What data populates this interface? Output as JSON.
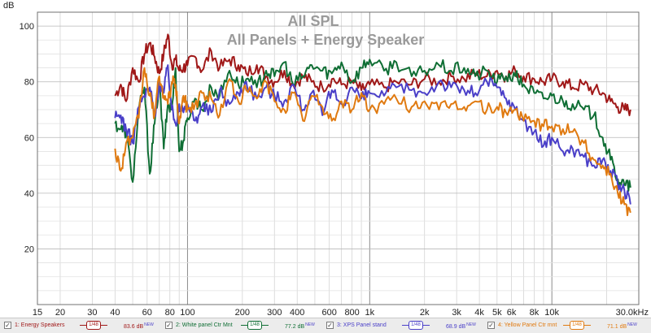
{
  "chart_data": {
    "type": "line",
    "title": "All SPL",
    "subtitle": "All Panels + Energy Speaker",
    "ylabel": "dB",
    "xscale": "log",
    "xlim": [
      15,
      30000
    ],
    "ylim": [
      0,
      105
    ],
    "grid": true,
    "y_ticks": [
      20,
      40,
      60,
      80,
      100
    ],
    "x_ticks": [
      {
        "value": 15,
        "label": "15"
      },
      {
        "value": 20,
        "label": "20"
      },
      {
        "value": 30,
        "label": "30"
      },
      {
        "value": 40,
        "label": "40"
      },
      {
        "value": 60,
        "label": "60"
      },
      {
        "value": 80,
        "label": "80"
      },
      {
        "value": 100,
        "label": "100"
      },
      {
        "value": 200,
        "label": "200"
      },
      {
        "value": 300,
        "label": "300"
      },
      {
        "value": 400,
        "label": "400"
      },
      {
        "value": 600,
        "label": "600"
      },
      {
        "value": 800,
        "label": "800"
      },
      {
        "value": 1000,
        "label": "1k"
      },
      {
        "value": 2000,
        "label": "2k"
      },
      {
        "value": 3000,
        "label": "3k"
      },
      {
        "value": 4000,
        "label": "4k"
      },
      {
        "value": 5000,
        "label": "5k"
      },
      {
        "value": 6000,
        "label": "6k"
      },
      {
        "value": 8000,
        "label": "8k"
      },
      {
        "value": 10000,
        "label": "10k"
      },
      {
        "value": 30000,
        "label": "30.0kHz"
      }
    ],
    "series": [
      {
        "name": "1: Energy Speakers",
        "color": "#a01818",
        "x": [
          40,
          43,
          46,
          50,
          54,
          58,
          62,
          66,
          70,
          74,
          78,
          82,
          86,
          90,
          95,
          100,
          110,
          120,
          135,
          150,
          170,
          190,
          210,
          240,
          270,
          300,
          340,
          380,
          430,
          480,
          550,
          620,
          700,
          800,
          900,
          1000,
          1200,
          1400,
          1700,
          2000,
          2400,
          2800,
          3300,
          3800,
          4400,
          5000,
          5600,
          6300,
          7000,
          8000,
          9000,
          10000,
          11500,
          13000,
          15000,
          17000,
          19000,
          21000,
          23000,
          25000,
          27000
        ],
        "y": [
          75,
          79,
          73,
          85,
          80,
          90,
          94,
          89,
          83,
          90,
          97,
          86,
          88,
          84,
          85,
          86,
          89,
          84,
          91,
          85,
          88,
          86,
          83,
          86,
          82,
          80,
          84,
          79,
          82,
          80,
          78,
          81,
          79,
          80,
          77,
          79,
          78,
          80,
          79,
          81,
          80,
          82,
          81,
          83,
          82,
          84,
          82,
          84,
          82,
          81,
          80,
          81,
          80,
          78,
          79,
          77,
          76,
          73,
          71,
          70,
          70
        ]
      },
      {
        "name": "2: White panel Ctr Mnt",
        "color": "#0f6e34",
        "x": [
          40,
          43,
          46,
          50,
          54,
          58,
          62,
          66,
          70,
          74,
          78,
          82,
          86,
          90,
          95,
          100,
          110,
          120,
          135,
          150,
          170,
          190,
          210,
          240,
          270,
          300,
          340,
          380,
          430,
          480,
          550,
          620,
          700,
          800,
          900,
          1000,
          1200,
          1400,
          1700,
          2000,
          2400,
          2800,
          3300,
          3800,
          4400,
          5000,
          5600,
          6300,
          7000,
          8000,
          9000,
          10000,
          11500,
          13000,
          15000,
          17000,
          19000,
          21000,
          23000,
          25000,
          27000
        ],
        "y": [
          65,
          63,
          62,
          44,
          70,
          78,
          47,
          65,
          80,
          56,
          72,
          70,
          85,
          55,
          59,
          67,
          74,
          70,
          78,
          75,
          84,
          79,
          81,
          78,
          84,
          82,
          87,
          79,
          82,
          86,
          84,
          83,
          87,
          80,
          85,
          88,
          84,
          87,
          82,
          84,
          86,
          84,
          85,
          82,
          84,
          80,
          82,
          82,
          79,
          76,
          74,
          75,
          73,
          72,
          70,
          68,
          60,
          52,
          45,
          43,
          42
        ]
      },
      {
        "name": "3: XPS Panel stand",
        "color": "#4a3fc8",
        "x": [
          40,
          43,
          46,
          50,
          54,
          58,
          62,
          66,
          70,
          74,
          78,
          82,
          86,
          90,
          95,
          100,
          110,
          120,
          135,
          150,
          170,
          190,
          210,
          240,
          270,
          300,
          340,
          380,
          430,
          480,
          550,
          620,
          700,
          800,
          900,
          1000,
          1200,
          1400,
          1700,
          2000,
          2400,
          2800,
          3300,
          3800,
          4400,
          5000,
          5600,
          6300,
          7000,
          8000,
          9000,
          10000,
          11500,
          13000,
          15000,
          17000,
          19000,
          21000,
          23000,
          25000,
          27000
        ],
        "y": [
          67,
          68,
          63,
          58,
          71,
          75,
          78,
          68,
          80,
          76,
          86,
          70,
          65,
          72,
          69,
          72,
          66,
          71,
          69,
          77,
          72,
          76,
          80,
          74,
          78,
          75,
          73,
          79,
          70,
          76,
          68,
          77,
          72,
          78,
          74,
          76,
          75,
          78,
          77,
          76,
          80,
          78,
          77,
          76,
          80,
          78,
          74,
          70,
          66,
          62,
          57,
          60,
          55,
          56,
          53,
          50,
          52,
          48,
          43,
          41,
          36
        ]
      },
      {
        "name": "4: Yellow Panel Ctr mnt",
        "color": "#e07a10",
        "x": [
          40,
          43,
          46,
          50,
          54,
          58,
          62,
          66,
          70,
          74,
          78,
          82,
          86,
          90,
          95,
          100,
          110,
          120,
          135,
          150,
          170,
          190,
          210,
          240,
          270,
          300,
          340,
          380,
          430,
          480,
          550,
          620,
          700,
          800,
          900,
          1000,
          1200,
          1400,
          1700,
          2000,
          2400,
          2800,
          3300,
          3800,
          4400,
          5000,
          5600,
          6300,
          7000,
          8000,
          9000,
          10000,
          11500,
          13000,
          15000,
          17000,
          19000,
          21000,
          23000,
          25000,
          27000
        ],
        "y": [
          56,
          48,
          58,
          60,
          67,
          85,
          75,
          68,
          82,
          75,
          72,
          80,
          79,
          65,
          75,
          70,
          72,
          76,
          74,
          68,
          81,
          73,
          77,
          74,
          80,
          73,
          70,
          76,
          66,
          75,
          71,
          66,
          73,
          70,
          76,
          70,
          72,
          74,
          71,
          73,
          70,
          72,
          71,
          73,
          70,
          71,
          69,
          70,
          66,
          66,
          64,
          64,
          63,
          62,
          58,
          52,
          50,
          47,
          40,
          36,
          33
        ]
      }
    ],
    "legend": [
      {
        "label": "1: Energy Speakers",
        "value": "83.6 dB",
        "badge": "NEW",
        "color": "#a01818"
      },
      {
        "label": "2: White panel Ctr Mnt",
        "value": "77.2 dB",
        "badge": "NEW",
        "color": "#0f6e34"
      },
      {
        "label": "3: XPS Panel stand",
        "value": "68.9 dB",
        "badge": "NEW",
        "color": "#4a3fc8"
      },
      {
        "label": "4: Yellow Panel Ctr mnt",
        "value": "71.1 dB",
        "badge": "NEW",
        "color": "#e07a10"
      }
    ],
    "legend_position": "bottom",
    "swatch_text": "1/48",
    "check_mark": "✓"
  }
}
